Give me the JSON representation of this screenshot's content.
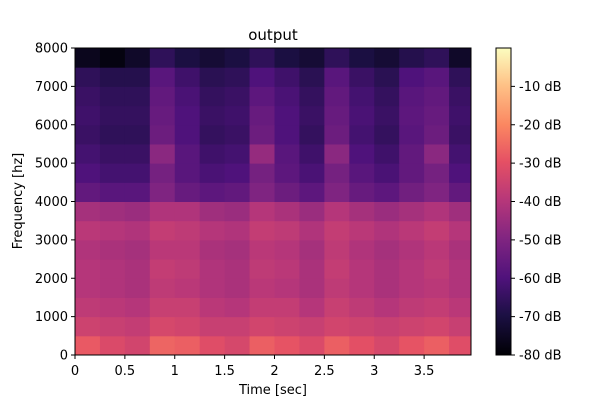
{
  "chart_data": {
    "type": "heatmap",
    "title": "output",
    "xlabel": "Time [sec]",
    "ylabel": "Frequency [hz]",
    "xlim": [
      0,
      3.97
    ],
    "ylim": [
      0,
      8000
    ],
    "x_ticks": [
      0,
      0.5,
      1,
      1.5,
      2,
      2.5,
      3,
      3.5
    ],
    "x_tick_labels": [
      "0",
      "0.5",
      "1",
      "1.5",
      "2",
      "2.5",
      "3",
      "3.5"
    ],
    "y_ticks": [
      0,
      1000,
      2000,
      3000,
      4000,
      5000,
      6000,
      7000,
      8000
    ],
    "y_tick_labels": [
      "0",
      "1000",
      "2000",
      "3000",
      "4000",
      "5000",
      "6000",
      "7000",
      "8000"
    ],
    "colorbar": {
      "ticks": [
        -10,
        -20,
        -30,
        -40,
        -50,
        -60,
        -70,
        -80
      ],
      "tick_labels": [
        "-10 dB",
        "-20 dB",
        "-30 dB",
        "-40 dB",
        "-50 dB",
        "-60 dB",
        "-70 dB",
        "-80 dB"
      ],
      "range": [
        -80,
        0
      ],
      "colormap": "magma"
    },
    "magnitude_db": {
      "frequency_bands_hz": [
        0,
        500,
        1000,
        1500,
        2000,
        2500,
        3000,
        3500,
        4000,
        4500,
        5000,
        5500,
        6000,
        6500,
        7000,
        7500
      ],
      "time_bins_sec": [
        0.0,
        0.25,
        0.5,
        0.75,
        1.0,
        1.25,
        1.5,
        1.75,
        2.0,
        2.25,
        2.5,
        2.75,
        3.0,
        3.25,
        3.5,
        3.75
      ],
      "values": [
        [
          -28,
          -32,
          -34,
          -26,
          -27,
          -31,
          -33,
          -27,
          -29,
          -32,
          -27,
          -30,
          -33,
          -29,
          -27,
          -31
        ],
        [
          -35,
          -36,
          -37,
          -33,
          -34,
          -36,
          -36,
          -34,
          -35,
          -36,
          -34,
          -35,
          -36,
          -35,
          -34,
          -36
        ],
        [
          -38,
          -39,
          -40,
          -36,
          -36,
          -39,
          -40,
          -37,
          -37,
          -40,
          -36,
          -38,
          -40,
          -38,
          -37,
          -39
        ],
        [
          -40,
          -41,
          -42,
          -38,
          -39,
          -41,
          -42,
          -39,
          -40,
          -42,
          -38,
          -40,
          -42,
          -40,
          -39,
          -41
        ],
        [
          -40,
          -41,
          -42,
          -37,
          -38,
          -41,
          -42,
          -38,
          -39,
          -42,
          -37,
          -40,
          -42,
          -40,
          -38,
          -41
        ],
        [
          -41,
          -42,
          -43,
          -39,
          -39,
          -42,
          -43,
          -39,
          -40,
          -43,
          -38,
          -41,
          -43,
          -41,
          -39,
          -42
        ],
        [
          -39,
          -40,
          -41,
          -37,
          -38,
          -40,
          -41,
          -37,
          -38,
          -41,
          -37,
          -39,
          -41,
          -39,
          -37,
          -40
        ],
        [
          -43,
          -44,
          -45,
          -41,
          -41,
          -44,
          -45,
          -40,
          -42,
          -45,
          -40,
          -43,
          -45,
          -43,
          -41,
          -44
        ],
        [
          -56,
          -58,
          -58,
          -50,
          -55,
          -57,
          -56,
          -50,
          -54,
          -57,
          -50,
          -55,
          -57,
          -53,
          -50,
          -56
        ],
        [
          -60,
          -62,
          -62,
          -52,
          -58,
          -61,
          -60,
          -52,
          -57,
          -61,
          -52,
          -58,
          -61,
          -56,
          -52,
          -60
        ],
        [
          -62,
          -64,
          -64,
          -48,
          -58,
          -63,
          -62,
          -46,
          -58,
          -63,
          -48,
          -60,
          -63,
          -56,
          -48,
          -62
        ],
        [
          -64,
          -66,
          -66,
          -54,
          -60,
          -65,
          -64,
          -54,
          -60,
          -65,
          -54,
          -62,
          -65,
          -58,
          -54,
          -64
        ],
        [
          -63,
          -65,
          -65,
          -55,
          -60,
          -64,
          -63,
          -55,
          -60,
          -64,
          -55,
          -61,
          -64,
          -57,
          -55,
          -63
        ],
        [
          -64,
          -66,
          -66,
          -56,
          -61,
          -65,
          -64,
          -57,
          -61,
          -65,
          -56,
          -62,
          -65,
          -58,
          -56,
          -64
        ],
        [
          -66,
          -68,
          -68,
          -58,
          -63,
          -67,
          -66,
          -60,
          -63,
          -67,
          -58,
          -64,
          -67,
          -60,
          -58,
          -66
        ],
        [
          -76,
          -78,
          -74,
          -66,
          -70,
          -72,
          -70,
          -66,
          -70,
          -72,
          -66,
          -70,
          -72,
          -68,
          -66,
          -74
        ]
      ]
    }
  }
}
